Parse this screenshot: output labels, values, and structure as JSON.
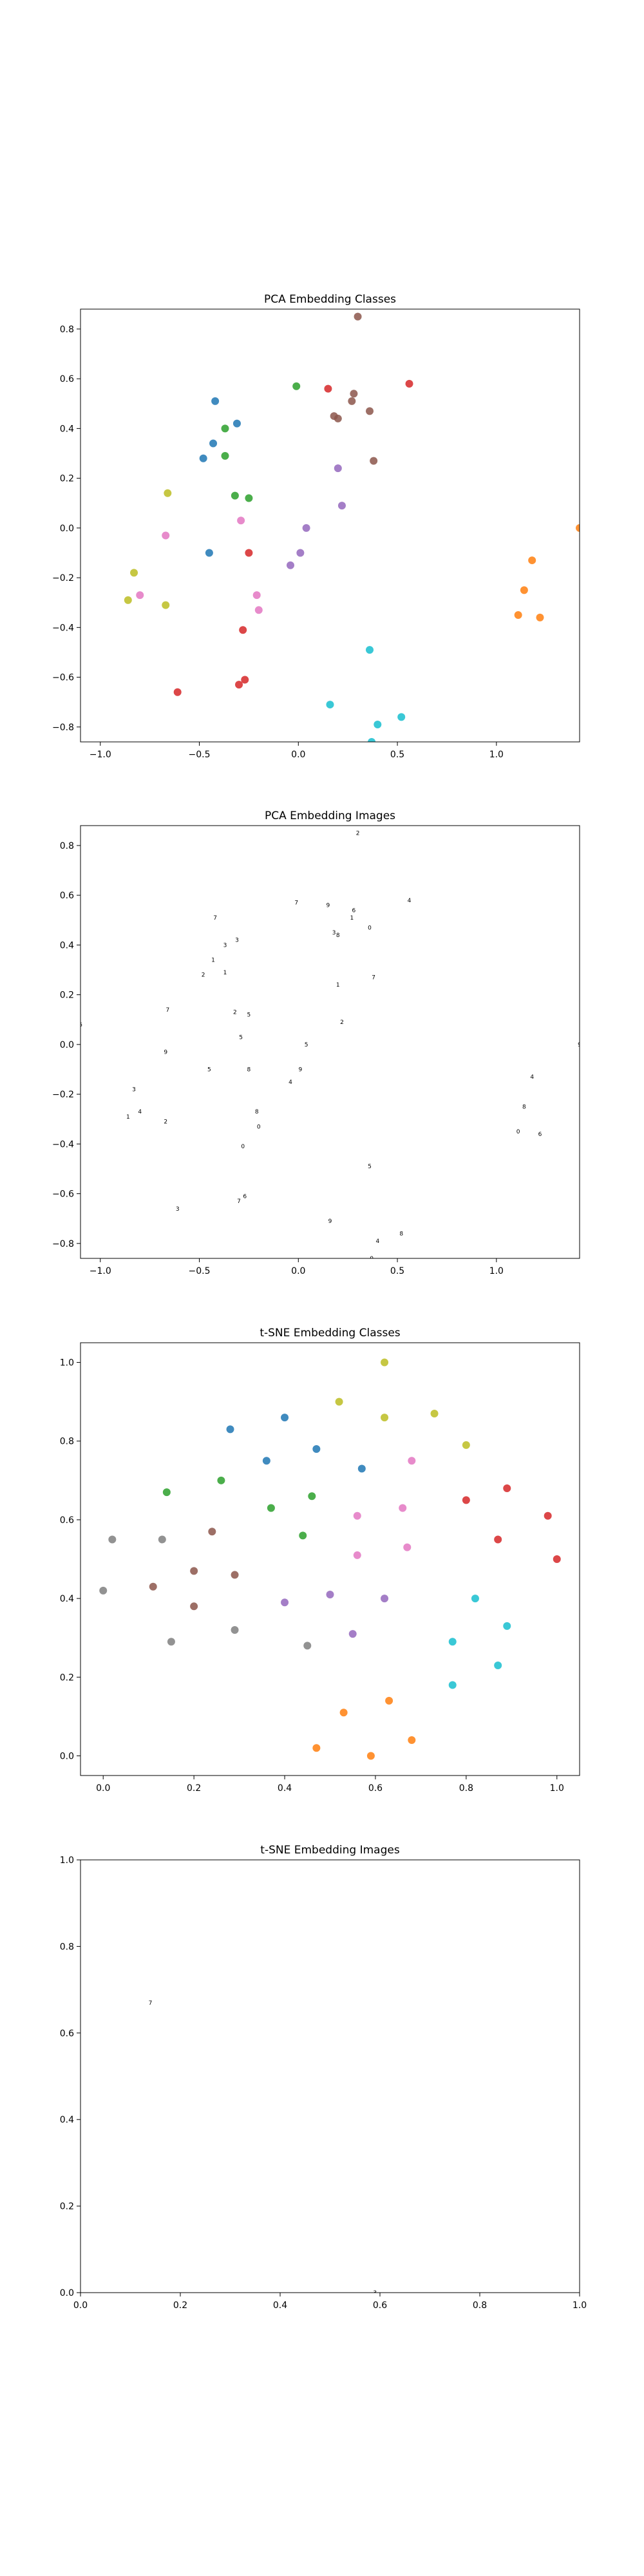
{
  "chart_data": [
    {
      "type": "scatter",
      "title": "PCA Embedding Classes",
      "xlabel": "",
      "ylabel": "",
      "xlim": [
        -1.1,
        1.42
      ],
      "ylim": [
        -0.86,
        0.88
      ],
      "xticks": [
        -1.0,
        -0.5,
        0.0,
        0.5,
        1.0
      ],
      "yticks": [
        -0.8,
        -0.6,
        -0.4,
        -0.2,
        0.0,
        0.2,
        0.4,
        0.6,
        0.8
      ],
      "xtick_labels": [
        "−1.0",
        "−0.5",
        "0.0",
        "0.5",
        "1.0"
      ],
      "ytick_labels": [
        "−0.8",
        "−0.6",
        "−0.4",
        "−0.2",
        "0.0",
        "0.2",
        "0.4",
        "0.6",
        "0.8"
      ],
      "grid": false,
      "series": [
        {
          "color": "#1f77b4",
          "points": [
            [
              -0.42,
              0.51
            ],
            [
              -0.31,
              0.42
            ],
            [
              -0.43,
              0.34
            ],
            [
              -0.48,
              0.28
            ],
            [
              -0.45,
              -0.1
            ]
          ]
        },
        {
          "color": "#ff7f0e",
          "points": [
            [
              1.42,
              0.0
            ],
            [
              1.18,
              -0.13
            ],
            [
              1.14,
              -0.25
            ],
            [
              1.11,
              -0.35
            ],
            [
              1.22,
              -0.36
            ]
          ]
        },
        {
          "color": "#2ca02c",
          "points": [
            [
              -0.01,
              0.57
            ],
            [
              -0.37,
              0.4
            ],
            [
              -0.37,
              0.29
            ],
            [
              -0.32,
              0.13
            ],
            [
              -0.25,
              0.12
            ]
          ]
        },
        {
          "color": "#d62728",
          "points": [
            [
              0.15,
              0.56
            ],
            [
              0.56,
              0.58
            ],
            [
              -0.25,
              -0.1
            ],
            [
              -0.28,
              -0.41
            ],
            [
              -0.27,
              -0.61
            ],
            [
              -0.3,
              -0.63
            ],
            [
              -0.61,
              -0.66
            ]
          ]
        },
        {
          "color": "#9467bd",
          "points": [
            [
              0.2,
              0.24
            ],
            [
              0.22,
              0.09
            ],
            [
              0.04,
              0.0
            ],
            [
              0.01,
              -0.1
            ],
            [
              -0.04,
              -0.15
            ]
          ]
        },
        {
          "color": "#8c564b",
          "points": [
            [
              0.2,
              0.44
            ],
            [
              0.36,
              0.47
            ],
            [
              0.28,
              0.54
            ],
            [
              0.38,
              0.27
            ],
            [
              0.18,
              0.45
            ],
            [
              0.27,
              0.51
            ],
            [
              0.3,
              0.85
            ]
          ]
        },
        {
          "color": "#e377c2",
          "points": [
            [
              -0.29,
              0.03
            ],
            [
              -0.67,
              -0.03
            ],
            [
              -0.8,
              -0.27
            ],
            [
              -0.21,
              -0.27
            ],
            [
              -0.2,
              -0.33
            ]
          ]
        },
        {
          "color": "#7f7f7f",
          "points": [
            [
              0.38,
              -0.88
            ]
          ]
        },
        {
          "color": "#bcbd22",
          "points": [
            [
              -0.66,
              0.14
            ],
            [
              -0.83,
              -0.18
            ],
            [
              -0.86,
              -0.29
            ],
            [
              -0.67,
              -0.31
            ]
          ]
        },
        {
          "color": "#17becf",
          "points": [
            [
              0.36,
              -0.49
            ],
            [
              0.16,
              -0.71
            ],
            [
              0.4,
              -0.79
            ],
            [
              0.52,
              -0.76
            ],
            [
              0.37,
              -0.86
            ]
          ]
        }
      ]
    },
    {
      "type": "scatter",
      "title": "PCA Embedding Images",
      "xlabel": "",
      "ylabel": "",
      "xlim": [
        -1.1,
        1.42
      ],
      "ylim": [
        -0.86,
        0.88
      ],
      "xticks": [
        -1.0,
        -0.5,
        0.0,
        0.5,
        1.0
      ],
      "yticks": [
        -0.8,
        -0.6,
        -0.4,
        -0.2,
        0.0,
        0.2,
        0.4,
        0.6,
        0.8
      ],
      "xtick_labels": [
        "−1.0",
        "−0.5",
        "0.0",
        "0.5",
        "1.0"
      ],
      "ytick_labels": [
        "−0.8",
        "−0.6",
        "−0.4",
        "−0.2",
        "0.0",
        "0.2",
        "0.4",
        "0.6",
        "0.8"
      ],
      "grid": false,
      "markers": "digit-images",
      "points": [
        [
          -0.42,
          0.51
        ],
        [
          -0.31,
          0.42
        ],
        [
          -0.43,
          0.34
        ],
        [
          -0.48,
          0.28
        ],
        [
          -0.45,
          -0.1
        ],
        [
          1.42,
          0.0
        ],
        [
          1.18,
          -0.13
        ],
        [
          1.14,
          -0.25
        ],
        [
          1.11,
          -0.35
        ],
        [
          1.22,
          -0.36
        ],
        [
          -0.01,
          0.57
        ],
        [
          -0.37,
          0.4
        ],
        [
          -0.37,
          0.29
        ],
        [
          -0.32,
          0.13
        ],
        [
          -0.25,
          0.12
        ],
        [
          0.15,
          0.56
        ],
        [
          0.56,
          0.58
        ],
        [
          -0.25,
          -0.1
        ],
        [
          -0.28,
          -0.41
        ],
        [
          -0.27,
          -0.61
        ],
        [
          -0.3,
          -0.63
        ],
        [
          -0.61,
          -0.66
        ],
        [
          0.2,
          0.24
        ],
        [
          0.22,
          0.09
        ],
        [
          0.04,
          0.0
        ],
        [
          0.01,
          -0.1
        ],
        [
          -0.04,
          -0.15
        ],
        [
          0.2,
          0.44
        ],
        [
          0.36,
          0.47
        ],
        [
          0.28,
          0.54
        ],
        [
          0.38,
          0.27
        ],
        [
          0.18,
          0.45
        ],
        [
          0.27,
          0.51
        ],
        [
          0.3,
          0.85
        ],
        [
          -0.29,
          0.03
        ],
        [
          -0.67,
          -0.03
        ],
        [
          -0.8,
          -0.27
        ],
        [
          -0.21,
          -0.27
        ],
        [
          -0.2,
          -0.33
        ],
        [
          0.38,
          -0.88
        ],
        [
          -0.66,
          0.14
        ],
        [
          -0.83,
          -0.18
        ],
        [
          -0.86,
          -0.29
        ],
        [
          -0.67,
          -0.31
        ],
        [
          0.36,
          -0.49
        ],
        [
          0.16,
          -0.71
        ],
        [
          0.4,
          -0.79
        ],
        [
          0.52,
          -0.76
        ],
        [
          0.37,
          -0.86
        ],
        [
          -1.1,
          0.08
        ]
      ]
    },
    {
      "type": "scatter",
      "title": "t-SNE Embedding Classes",
      "xlabel": "",
      "ylabel": "",
      "xlim": [
        -0.05,
        1.05
      ],
      "ylim": [
        -0.05,
        1.05
      ],
      "xticks": [
        0.0,
        0.2,
        0.4,
        0.6,
        0.8,
        1.0
      ],
      "yticks": [
        0.0,
        0.2,
        0.4,
        0.6,
        0.8,
        1.0
      ],
      "xtick_labels": [
        "0.0",
        "0.2",
        "0.4",
        "0.6",
        "0.8",
        "1.0"
      ],
      "ytick_labels": [
        "0.0",
        "0.2",
        "0.4",
        "0.6",
        "0.8",
        "1.0"
      ],
      "grid": false,
      "series": [
        {
          "color": "#1f77b4",
          "points": [
            [
              0.28,
              0.83
            ],
            [
              0.4,
              0.86
            ],
            [
              0.47,
              0.78
            ],
            [
              0.36,
              0.75
            ],
            [
              0.57,
              0.73
            ]
          ]
        },
        {
          "color": "#ff7f0e",
          "points": [
            [
              0.47,
              0.02
            ],
            [
              0.53,
              0.11
            ],
            [
              0.63,
              0.14
            ],
            [
              0.59,
              0.0
            ],
            [
              0.68,
              0.04
            ]
          ]
        },
        {
          "color": "#2ca02c",
          "points": [
            [
              0.14,
              0.67
            ],
            [
              0.26,
              0.7
            ],
            [
              0.37,
              0.63
            ],
            [
              0.46,
              0.66
            ],
            [
              0.44,
              0.56
            ]
          ]
        },
        {
          "color": "#d62728",
          "points": [
            [
              0.8,
              0.65
            ],
            [
              0.89,
              0.68
            ],
            [
              0.87,
              0.55
            ],
            [
              0.98,
              0.61
            ],
            [
              1.0,
              0.5
            ]
          ]
        },
        {
          "color": "#9467bd",
          "points": [
            [
              0.4,
              0.39
            ],
            [
              0.5,
              0.41
            ],
            [
              0.62,
              0.4
            ],
            [
              0.55,
              0.31
            ]
          ]
        },
        {
          "color": "#8c564b",
          "points": [
            [
              0.24,
              0.57
            ],
            [
              0.2,
              0.47
            ],
            [
              0.29,
              0.46
            ],
            [
              0.11,
              0.43
            ],
            [
              0.2,
              0.38
            ]
          ]
        },
        {
          "color": "#e377c2",
          "points": [
            [
              0.68,
              0.75
            ],
            [
              0.66,
              0.63
            ],
            [
              0.56,
              0.61
            ],
            [
              0.67,
              0.53
            ],
            [
              0.56,
              0.51
            ]
          ]
        },
        {
          "color": "#7f7f7f",
          "points": [
            [
              0.02,
              0.55
            ],
            [
              0.13,
              0.55
            ],
            [
              0.0,
              0.42
            ],
            [
              0.15,
              0.29
            ],
            [
              0.29,
              0.32
            ],
            [
              0.45,
              0.28
            ]
          ]
        },
        {
          "color": "#bcbd22",
          "points": [
            [
              0.62,
              1.0
            ],
            [
              0.52,
              0.9
            ],
            [
              0.62,
              0.86
            ],
            [
              0.73,
              0.87
            ],
            [
              0.8,
              0.79
            ]
          ]
        },
        {
          "color": "#17becf",
          "points": [
            [
              0.82,
              0.4
            ],
            [
              0.77,
              0.29
            ],
            [
              0.89,
              0.33
            ],
            [
              0.77,
              0.18
            ],
            [
              0.87,
              0.23
            ]
          ]
        }
      ]
    },
    {
      "type": "scatter",
      "title": "t-SNE Embedding Images",
      "xlabel": "",
      "ylabel": "",
      "xlim": [
        0.0,
        1.0
      ],
      "ylim": [
        0.0,
        1.0
      ],
      "xticks": [
        0.0,
        0.2,
        0.4,
        0.6,
        0.8,
        1.0
      ],
      "yticks": [
        0.0,
        0.2,
        0.4,
        0.6,
        0.8,
        1.0
      ],
      "xtick_labels": [
        "0.0",
        "0.2",
        "0.4",
        "0.6",
        "0.8",
        "1.0"
      ],
      "ytick_labels": [
        "0.0",
        "0.2",
        "0.4",
        "0.6",
        "0.8",
        "1.0"
      ],
      "grid": false,
      "markers": "digit-images",
      "points": [
        [
          0.14,
          0.67
        ],
        [
          0.59,
          0.0
        ]
      ]
    }
  ]
}
